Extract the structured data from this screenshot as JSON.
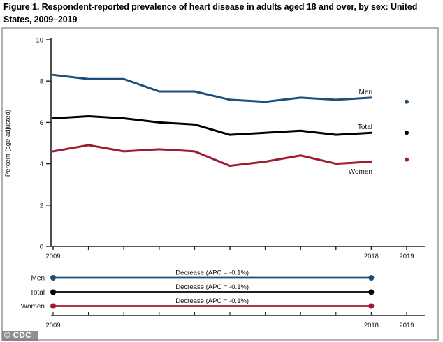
{
  "title": "Figure 1. Respondent-reported prevalence of heart disease in adults aged 18 and over, by sex: United States, 2009–2019",
  "watermark": "© CDC",
  "chart_data": {
    "type": "line",
    "title": "Figure 1. Respondent-reported prevalence of heart disease in adults aged 18 and over, by sex: United States, 2009–2019",
    "ylabel": "Percent (age adjusted)",
    "ylim": [
      0,
      10
    ],
    "yticks": [
      0,
      2,
      4,
      6,
      8,
      10
    ],
    "x": [
      2009,
      2010,
      2011,
      2012,
      2013,
      2014,
      2015,
      2016,
      2017,
      2018
    ],
    "x_labeled_ticks": [
      2009,
      2018,
      2019
    ],
    "x_all_ticks": [
      2009,
      2010,
      2011,
      2012,
      2013,
      2014,
      2015,
      2016,
      2017,
      2018,
      2019
    ],
    "grid": false,
    "legend_position": "inline-right",
    "series": [
      {
        "name": "Men",
        "color": "#1f4e79",
        "values": [
          8.3,
          8.1,
          8.1,
          7.5,
          7.5,
          7.1,
          7.0,
          7.2,
          7.1,
          7.2
        ],
        "value_2019": 7.0
      },
      {
        "name": "Total",
        "color": "#000000",
        "values": [
          6.2,
          6.3,
          6.2,
          6.0,
          5.9,
          5.4,
          5.5,
          5.6,
          5.4,
          5.5
        ],
        "value_2019": 5.5
      },
      {
        "name": "Women",
        "color": "#9e1b32",
        "values": [
          4.6,
          4.9,
          4.6,
          4.7,
          4.6,
          3.9,
          4.1,
          4.4,
          4.0,
          4.1
        ],
        "value_2019": 4.2
      }
    ],
    "trend_panel": {
      "x_start": 2009,
      "x_end": 2018,
      "x_labels": [
        2009,
        2018,
        2019
      ],
      "rows": [
        {
          "name": "Men",
          "color": "#1f4e79",
          "annotation": "Decrease (APC = -0.1%)"
        },
        {
          "name": "Total",
          "color": "#000000",
          "annotation": "Decrease (APC = -0.1%)"
        },
        {
          "name": "Women",
          "color": "#9e1b32",
          "annotation": "Decrease (APC = -0.1%)"
        }
      ]
    }
  },
  "frame_color": "#999999",
  "axis_color": "#222222"
}
